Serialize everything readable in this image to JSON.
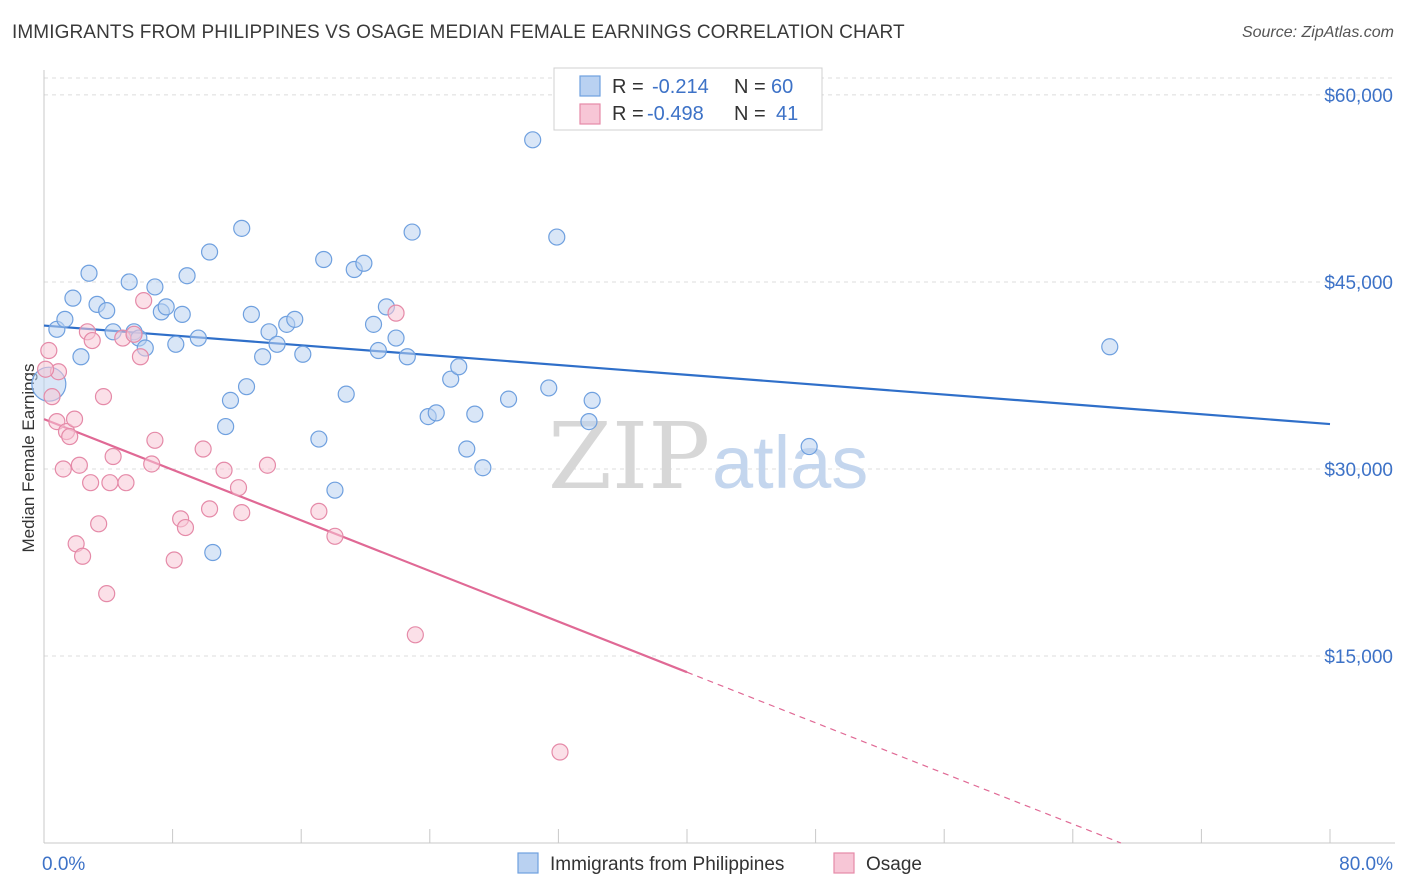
{
  "title": "IMMIGRANTS FROM PHILIPPINES VS OSAGE MEDIAN FEMALE EARNINGS CORRELATION CHART",
  "source": "Source: ZipAtlas.com",
  "watermark": {
    "part1": "ZIP",
    "part2": "atlas"
  },
  "colors": {
    "blue": "#6fa0df",
    "blue_fill": "#b9d1f1",
    "blue_line": "#2f6fc9",
    "pink": "#e58aa8",
    "pink_fill": "#f7c6d6",
    "pink_line": "#e06995",
    "grid": "#dcdcdc",
    "axis_text": "#3d72c7"
  },
  "legend_top": {
    "rows": [
      {
        "r_label": "R =",
        "r_value": "-0.214",
        "n_label": "N =",
        "n_value": "60"
      },
      {
        "r_label": "R =",
        "r_value": "-0.498",
        "n_label": "N =",
        "n_value": "41"
      }
    ]
  },
  "legend_bottom": [
    "Immigrants from Philippines",
    "Osage"
  ],
  "chart_data": {
    "type": "scatter",
    "xlabel": "",
    "ylabel": "Median Female Earnings",
    "xlim": [
      0,
      80
    ],
    "ylim": [
      0,
      62000
    ],
    "x_tick_labels": [
      "0.0%",
      "80.0%"
    ],
    "y_ticks": [
      15000,
      30000,
      45000,
      60000
    ],
    "y_tick_labels": [
      "$15,000",
      "$30,000",
      "$45,000",
      "$60,000"
    ],
    "grid": true,
    "series": [
      {
        "name": "Immigrants from Philippines",
        "color": "blue",
        "trend": {
          "x0": 0,
          "y0": 41500,
          "x1": 80,
          "y1": 33600
        },
        "points": [
          [
            0.8,
            41200
          ],
          [
            1.3,
            42000
          ],
          [
            1.8,
            43700
          ],
          [
            2.3,
            39000
          ],
          [
            2.8,
            45700
          ],
          [
            3.3,
            43200
          ],
          [
            3.9,
            42700
          ],
          [
            4.3,
            41000
          ],
          [
            5.3,
            45000
          ],
          [
            5.6,
            41000
          ],
          [
            5.9,
            40500
          ],
          [
            6.3,
            39700
          ],
          [
            6.9,
            44600
          ],
          [
            7.3,
            42600
          ],
          [
            7.6,
            43000
          ],
          [
            8.2,
            40000
          ],
          [
            8.6,
            42400
          ],
          [
            8.9,
            45500
          ],
          [
            9.6,
            40500
          ],
          [
            10.3,
            47400
          ],
          [
            11.3,
            33400
          ],
          [
            11.6,
            35500
          ],
          [
            12.3,
            49300
          ],
          [
            12.6,
            36600
          ],
          [
            12.9,
            42400
          ],
          [
            13.6,
            39000
          ],
          [
            14.0,
            41000
          ],
          [
            14.5,
            40000
          ],
          [
            15.1,
            41600
          ],
          [
            15.6,
            42000
          ],
          [
            16.1,
            39200
          ],
          [
            17.1,
            32400
          ],
          [
            17.4,
            46800
          ],
          [
            18.1,
            28300
          ],
          [
            18.8,
            36000
          ],
          [
            19.3,
            46000
          ],
          [
            19.9,
            46500
          ],
          [
            20.5,
            41600
          ],
          [
            20.8,
            39500
          ],
          [
            21.3,
            43000
          ],
          [
            21.9,
            40500
          ],
          [
            22.6,
            39000
          ],
          [
            22.9,
            49000
          ],
          [
            23.9,
            34200
          ],
          [
            24.4,
            34500
          ],
          [
            25.3,
            37200
          ],
          [
            25.8,
            38200
          ],
          [
            26.3,
            31600
          ],
          [
            26.8,
            34400
          ],
          [
            27.3,
            30100
          ],
          [
            28.9,
            35600
          ],
          [
            30.4,
            56400
          ],
          [
            31.4,
            36500
          ],
          [
            31.9,
            48600
          ],
          [
            33.9,
            33800
          ],
          [
            34.1,
            35500
          ],
          [
            47.6,
            31800
          ],
          [
            66.3,
            39800
          ],
          [
            10.5,
            23300
          ],
          [
            0.3,
            36800
          ]
        ]
      },
      {
        "name": "Osage",
        "color": "pink",
        "trend": {
          "x0": 0,
          "y0": 34000,
          "x1": 40,
          "y1": 13700,
          "dash_x1": 80,
          "dash_y1": -6500
        },
        "points": [
          [
            0.3,
            39500
          ],
          [
            0.5,
            35800
          ],
          [
            0.8,
            33800
          ],
          [
            0.9,
            37800
          ],
          [
            1.2,
            30000
          ],
          [
            1.4,
            33000
          ],
          [
            1.6,
            32600
          ],
          [
            1.9,
            34000
          ],
          [
            2.0,
            24000
          ],
          [
            2.2,
            30300
          ],
          [
            2.4,
            23000
          ],
          [
            2.7,
            41000
          ],
          [
            2.9,
            28900
          ],
          [
            3.0,
            40300
          ],
          [
            3.4,
            25600
          ],
          [
            3.7,
            35800
          ],
          [
            3.9,
            20000
          ],
          [
            4.1,
            28900
          ],
          [
            4.3,
            31000
          ],
          [
            4.9,
            40500
          ],
          [
            5.1,
            28900
          ],
          [
            5.6,
            40800
          ],
          [
            6.0,
            39000
          ],
          [
            6.2,
            43500
          ],
          [
            6.7,
            30400
          ],
          [
            6.9,
            32300
          ],
          [
            8.1,
            22700
          ],
          [
            8.5,
            26000
          ],
          [
            8.8,
            25300
          ],
          [
            9.9,
            31600
          ],
          [
            10.3,
            26800
          ],
          [
            11.2,
            29900
          ],
          [
            12.1,
            28500
          ],
          [
            12.3,
            26500
          ],
          [
            13.9,
            30300
          ],
          [
            17.1,
            26600
          ],
          [
            18.1,
            24600
          ],
          [
            21.9,
            42500
          ],
          [
            23.1,
            16700
          ],
          [
            32.1,
            7300
          ],
          [
            0.1,
            38000
          ]
        ]
      }
    ]
  }
}
